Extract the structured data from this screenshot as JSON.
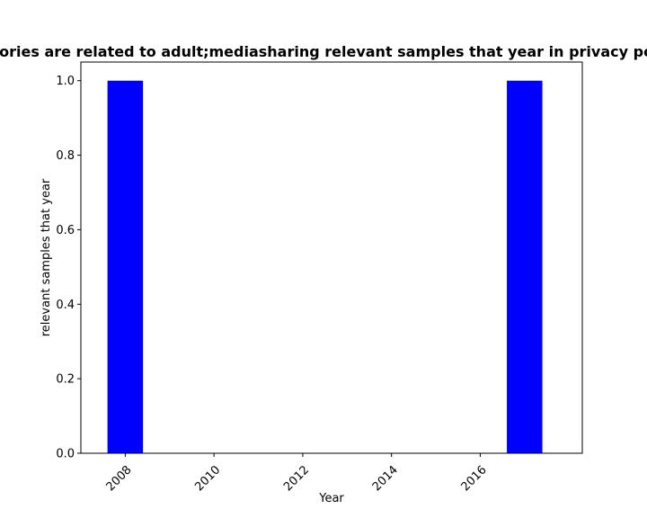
{
  "chart_data": {
    "type": "bar",
    "title": "Categories are related to adult;mediasharing relevant samples that year in privacy policies",
    "xlabel": "Year",
    "ylabel": "relevant samples that year",
    "x": [
      2008,
      2017
    ],
    "values": [
      1.0,
      1.0
    ],
    "bar_width": 0.8,
    "xlim": [
      2007.0,
      2018.3
    ],
    "ylim": [
      0,
      1.05
    ],
    "xticks": [
      2008,
      2010,
      2012,
      2014,
      2016
    ],
    "yticks": [
      "0.0",
      "0.2",
      "0.4",
      "0.6",
      "0.8",
      "1.0"
    ],
    "bar_color": "#0000ff",
    "grid": false,
    "legend": "none"
  }
}
